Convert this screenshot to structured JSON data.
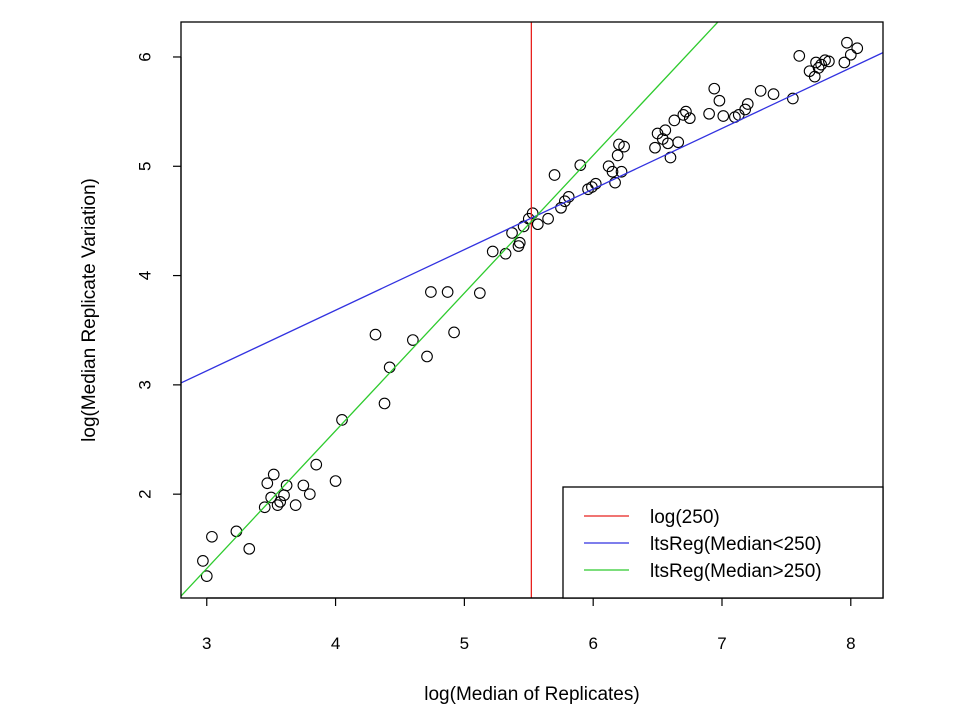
{
  "chart_data": {
    "type": "scatter",
    "title": "",
    "xlabel": "log(Median of Replicates)",
    "ylabel": "log(Median Replicate Variation)",
    "xlim": [
      2.8,
      8.25
    ],
    "ylim": [
      1.05,
      6.32
    ],
    "xticks": [
      3,
      4,
      5,
      6,
      7,
      8
    ],
    "yticks": [
      2,
      3,
      4,
      5,
      6
    ],
    "grid": false,
    "legend_position": "bottom-right",
    "points": {
      "x": [
        2.97,
        3.0,
        3.04,
        3.23,
        3.33,
        3.45,
        3.47,
        3.5,
        3.52,
        3.55,
        3.57,
        3.6,
        3.62,
        3.69,
        3.75,
        3.8,
        3.85,
        4.0,
        4.05,
        4.31,
        4.38,
        4.42,
        4.6,
        4.71,
        4.74,
        4.87,
        4.92,
        5.12,
        5.22,
        5.32,
        5.37,
        5.42,
        5.43,
        5.46,
        5.5,
        5.53,
        5.57,
        5.65,
        5.7,
        5.75,
        5.78,
        5.81,
        5.9,
        5.96,
        5.99,
        6.02,
        6.12,
        6.15,
        6.17,
        6.19,
        6.2,
        6.22,
        6.24,
        6.48,
        6.5,
        6.54,
        6.56,
        6.58,
        6.6,
        6.63,
        6.66,
        6.7,
        6.72,
        6.75,
        6.9,
        6.94,
        6.98,
        7.01,
        7.1,
        7.13,
        7.18,
        7.2,
        7.3,
        7.4,
        7.55,
        7.6,
        7.68,
        7.72,
        7.73,
        7.75,
        7.77,
        7.8,
        7.83,
        7.95,
        7.97,
        8.0,
        8.05
      ],
      "y": [
        1.39,
        1.25,
        1.61,
        1.66,
        1.5,
        1.88,
        2.1,
        1.97,
        2.18,
        1.9,
        1.93,
        1.99,
        2.08,
        1.9,
        2.08,
        2.0,
        2.27,
        2.12,
        2.68,
        3.46,
        2.83,
        3.16,
        3.41,
        3.26,
        3.85,
        3.85,
        3.48,
        3.84,
        4.22,
        4.2,
        4.39,
        4.27,
        4.3,
        4.45,
        4.52,
        4.57,
        4.47,
        4.52,
        4.92,
        4.62,
        4.68,
        4.72,
        5.01,
        4.79,
        4.81,
        4.84,
        5.0,
        4.95,
        4.85,
        5.1,
        5.2,
        4.95,
        5.18,
        5.17,
        5.3,
        5.25,
        5.33,
        5.21,
        5.08,
        5.42,
        5.22,
        5.47,
        5.5,
        5.44,
        5.48,
        5.71,
        5.6,
        5.46,
        5.45,
        5.47,
        5.52,
        5.57,
        5.69,
        5.66,
        5.62,
        6.01,
        5.87,
        5.82,
        5.95,
        5.9,
        5.93,
        5.97,
        5.96,
        5.95,
        6.13,
        6.02,
        6.08
      ]
    },
    "lines": [
      {
        "label": "log(250)",
        "type": "vline",
        "x": 5.52,
        "color": "#e8211e"
      },
      {
        "label": "ltsReg(Median<250)",
        "type": "abline",
        "intercept": 1.465,
        "slope": 0.5545,
        "color": "#3232e0"
      },
      {
        "label": "ltsReg(Median>250)",
        "type": "abline",
        "intercept": -2.46,
        "slope": 1.26,
        "color": "#2ecb2e"
      }
    ],
    "colors": {
      "points": "#000000",
      "axis": "#000000",
      "background": "#ffffff"
    }
  }
}
